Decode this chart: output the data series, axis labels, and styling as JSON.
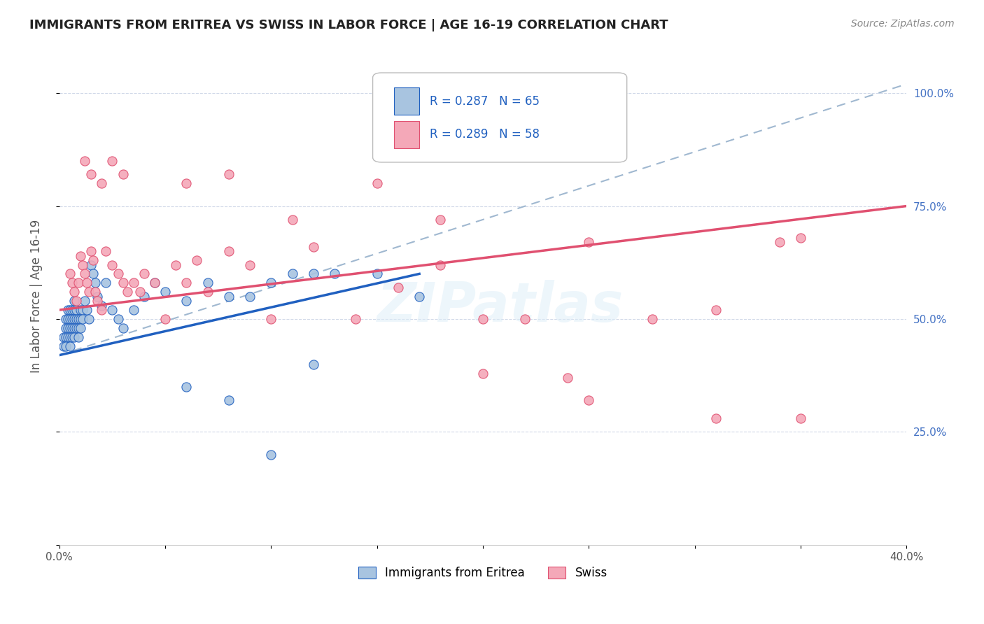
{
  "title": "IMMIGRANTS FROM ERITREA VS SWISS IN LABOR FORCE | AGE 16-19 CORRELATION CHART",
  "source": "Source: ZipAtlas.com",
  "ylabel": "In Labor Force | Age 16-19",
  "xlim": [
    0.0,
    0.4
  ],
  "ylim": [
    0.0,
    1.1
  ],
  "ytick_labels": [
    "",
    "25.0%",
    "50.0%",
    "75.0%",
    "100.0%"
  ],
  "ytick_values": [
    0.0,
    0.25,
    0.5,
    0.75,
    1.0
  ],
  "xtick_labels": [
    "0.0%",
    "",
    "",
    "",
    "",
    "",
    "",
    "",
    "40.0%"
  ],
  "xtick_values": [
    0.0,
    0.05,
    0.1,
    0.15,
    0.2,
    0.25,
    0.3,
    0.35,
    0.4
  ],
  "r_eritrea": 0.287,
  "n_eritrea": 65,
  "r_swiss": 0.289,
  "n_swiss": 58,
  "color_eritrea": "#a8c4e0",
  "color_swiss": "#f4a8b8",
  "trendline_eritrea_color": "#2060c0",
  "trendline_swiss_color": "#e05070",
  "trendline_dashed_color": "#a0b8d0",
  "legend_r_color": "#2060c0",
  "watermark": "ZIPatlas",
  "eritrea_x": [
    0.002,
    0.002,
    0.003,
    0.003,
    0.003,
    0.003,
    0.004,
    0.004,
    0.004,
    0.004,
    0.005,
    0.005,
    0.005,
    0.005,
    0.005,
    0.006,
    0.006,
    0.006,
    0.006,
    0.007,
    0.007,
    0.007,
    0.007,
    0.007,
    0.008,
    0.008,
    0.008,
    0.009,
    0.009,
    0.009,
    0.01,
    0.01,
    0.01,
    0.011,
    0.011,
    0.012,
    0.013,
    0.014,
    0.015,
    0.016,
    0.017,
    0.018,
    0.02,
    0.022,
    0.025,
    0.028,
    0.03,
    0.035,
    0.04,
    0.045,
    0.05,
    0.06,
    0.07,
    0.08,
    0.09,
    0.1,
    0.11,
    0.12,
    0.13,
    0.15,
    0.17,
    0.06,
    0.08,
    0.1,
    0.12
  ],
  "eritrea_y": [
    0.46,
    0.44,
    0.5,
    0.48,
    0.46,
    0.44,
    0.52,
    0.5,
    0.48,
    0.46,
    0.52,
    0.5,
    0.48,
    0.46,
    0.44,
    0.52,
    0.5,
    0.48,
    0.46,
    0.54,
    0.52,
    0.5,
    0.48,
    0.46,
    0.52,
    0.5,
    0.48,
    0.5,
    0.48,
    0.46,
    0.52,
    0.5,
    0.48,
    0.52,
    0.5,
    0.54,
    0.52,
    0.5,
    0.62,
    0.6,
    0.58,
    0.55,
    0.53,
    0.58,
    0.52,
    0.5,
    0.48,
    0.52,
    0.55,
    0.58,
    0.56,
    0.54,
    0.58,
    0.55,
    0.55,
    0.58,
    0.6,
    0.6,
    0.6,
    0.6,
    0.55,
    0.35,
    0.32,
    0.2,
    0.4
  ],
  "swiss_x": [
    0.005,
    0.006,
    0.007,
    0.008,
    0.009,
    0.01,
    0.011,
    0.012,
    0.013,
    0.014,
    0.015,
    0.016,
    0.017,
    0.018,
    0.02,
    0.022,
    0.025,
    0.028,
    0.03,
    0.032,
    0.035,
    0.038,
    0.04,
    0.045,
    0.05,
    0.055,
    0.06,
    0.065,
    0.07,
    0.08,
    0.09,
    0.1,
    0.11,
    0.12,
    0.14,
    0.16,
    0.18,
    0.2,
    0.22,
    0.25,
    0.28,
    0.31,
    0.34,
    0.012,
    0.015,
    0.02,
    0.025,
    0.03,
    0.06,
    0.08,
    0.15,
    0.2,
    0.25,
    0.31,
    0.18,
    0.24,
    0.35,
    0.35
  ],
  "swiss_y": [
    0.6,
    0.58,
    0.56,
    0.54,
    0.58,
    0.64,
    0.62,
    0.6,
    0.58,
    0.56,
    0.65,
    0.63,
    0.56,
    0.54,
    0.52,
    0.65,
    0.62,
    0.6,
    0.58,
    0.56,
    0.58,
    0.56,
    0.6,
    0.58,
    0.5,
    0.62,
    0.58,
    0.63,
    0.56,
    0.65,
    0.62,
    0.5,
    0.72,
    0.66,
    0.5,
    0.57,
    0.72,
    0.5,
    0.5,
    0.67,
    0.5,
    0.52,
    0.67,
    0.85,
    0.82,
    0.8,
    0.85,
    0.82,
    0.8,
    0.82,
    0.8,
    0.38,
    0.32,
    0.28,
    0.62,
    0.37,
    0.68,
    0.28
  ]
}
